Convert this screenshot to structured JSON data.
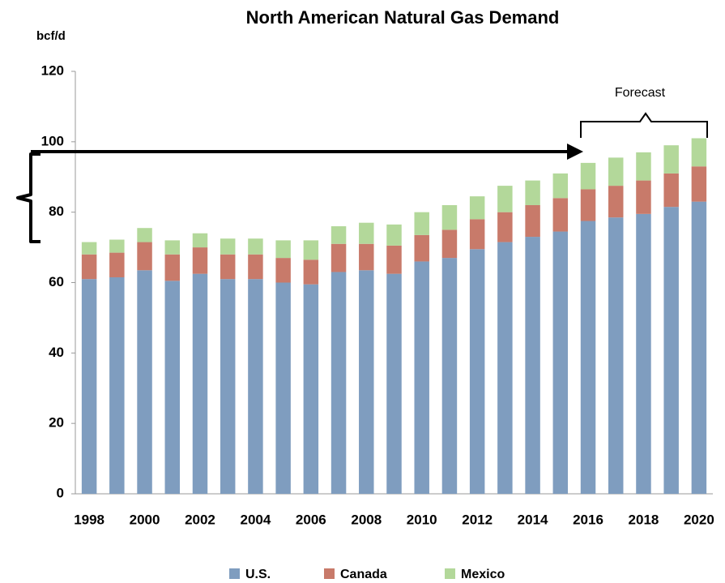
{
  "chart_data": {
    "type": "bar",
    "stacked": true,
    "title": "North American Natural Gas Demand",
    "y_label": "bcf/d",
    "annotation": "Forecast",
    "categories": [
      "1998",
      null,
      "2000",
      null,
      "2002",
      null,
      "2004",
      null,
      "2006",
      null,
      "2008",
      null,
      "2010",
      null,
      "2012",
      null,
      "2014",
      null,
      "2016",
      null,
      "2018",
      null,
      "2020"
    ],
    "series": [
      {
        "name": "U.S.",
        "color": "#7f9dbf",
        "values": [
          61,
          61.5,
          63.5,
          60.5,
          62.5,
          61,
          61,
          60,
          59.5,
          63,
          63.5,
          62.5,
          66,
          67,
          69.5,
          71.5,
          73,
          74.5,
          77.5,
          78.5,
          79.5,
          81.5,
          83
        ]
      },
      {
        "name": "Canada",
        "color": "#c87a6a",
        "values": [
          7,
          7,
          8,
          7.5,
          7.5,
          7,
          7,
          7,
          7,
          8,
          7.5,
          8,
          7.5,
          8,
          8.5,
          8.5,
          9,
          9.5,
          9,
          9,
          9.5,
          9.5,
          10
        ]
      },
      {
        "name": "Mexico",
        "color": "#b3d89a",
        "values": [
          3.5,
          3.7,
          4,
          4,
          4,
          4.5,
          4.5,
          5,
          5.5,
          5,
          6,
          6,
          6.5,
          7,
          6.5,
          7.5,
          7,
          7,
          7.5,
          8,
          8,
          8,
          8
        ]
      }
    ],
    "ylim": [
      0,
      120
    ],
    "yticks": [
      0,
      20,
      40,
      60,
      80,
      100,
      120
    ],
    "grid": false
  }
}
